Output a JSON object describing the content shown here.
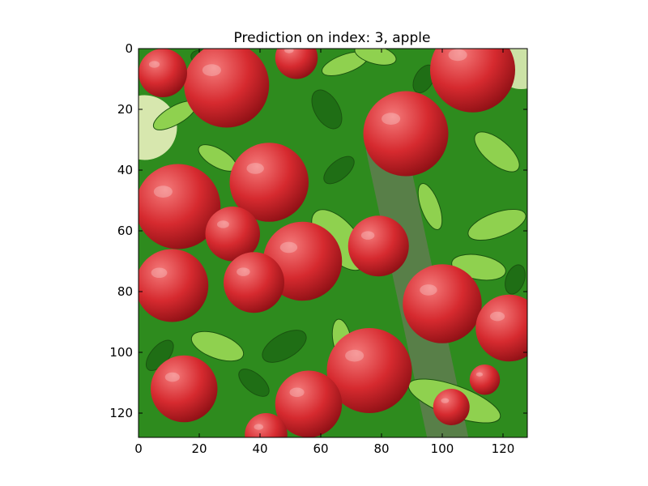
{
  "chart_data": {
    "type": "image",
    "title": "Prediction on index: 3, apple",
    "xlabel": "",
    "ylabel": "",
    "xlim": [
      0,
      128
    ],
    "ylim": [
      128,
      0
    ],
    "x_ticks": [
      0,
      20,
      40,
      60,
      80,
      100,
      120
    ],
    "y_ticks": [
      0,
      20,
      40,
      60,
      80,
      100,
      120
    ],
    "x_tick_labels": [
      "0",
      "20",
      "40",
      "60",
      "80",
      "100",
      "120"
    ],
    "y_tick_labels": [
      "0",
      "20",
      "40",
      "60",
      "80",
      "100",
      "120"
    ],
    "grid": false,
    "image_content": "apples-on-tree",
    "colors": {
      "apple": "#d62a2f",
      "apple_highlight": "#f06a6a",
      "leaf": "#2e8b1e",
      "leaf_light": "#8fd14f",
      "bark": "#6b7a5a",
      "bright": "#f4f7c8"
    },
    "apples": [
      {
        "x": 29,
        "y": 12,
        "r": 14
      },
      {
        "x": 52,
        "y": 3,
        "r": 7
      },
      {
        "x": 110,
        "y": 7,
        "r": 14
      },
      {
        "x": 8,
        "y": 8,
        "r": 8
      },
      {
        "x": 88,
        "y": 28,
        "r": 14
      },
      {
        "x": 43,
        "y": 44,
        "r": 13
      },
      {
        "x": 13,
        "y": 52,
        "r": 14
      },
      {
        "x": 31,
        "y": 61,
        "r": 9
      },
      {
        "x": 54,
        "y": 70,
        "r": 13
      },
      {
        "x": 79,
        "y": 65,
        "r": 10
      },
      {
        "x": 38,
        "y": 77,
        "r": 10
      },
      {
        "x": 11,
        "y": 78,
        "r": 12
      },
      {
        "x": 100,
        "y": 84,
        "r": 13
      },
      {
        "x": 122,
        "y": 92,
        "r": 11
      },
      {
        "x": 76,
        "y": 106,
        "r": 14
      },
      {
        "x": 15,
        "y": 112,
        "r": 11
      },
      {
        "x": 56,
        "y": 117,
        "r": 11
      },
      {
        "x": 42,
        "y": 127,
        "r": 7
      },
      {
        "x": 103,
        "y": 118,
        "r": 6
      },
      {
        "x": 114,
        "y": 109,
        "r": 5
      }
    ],
    "leaves": [
      {
        "x": 12,
        "y": 22,
        "rx": 8,
        "ry": 3,
        "rot": -30,
        "light": true
      },
      {
        "x": 23,
        "y": 4,
        "rx": 6,
        "ry": 3,
        "rot": 20,
        "light": false
      },
      {
        "x": 68,
        "y": 5,
        "rx": 8,
        "ry": 3,
        "rot": -20,
        "light": true
      },
      {
        "x": 78,
        "y": 2,
        "rx": 7,
        "ry": 3,
        "rot": 15,
        "light": true
      },
      {
        "x": 62,
        "y": 20,
        "rx": 7,
        "ry": 4,
        "rot": 60,
        "light": false
      },
      {
        "x": 94,
        "y": 10,
        "rx": 5,
        "ry": 3,
        "rot": -60,
        "light": false
      },
      {
        "x": 118,
        "y": 34,
        "rx": 9,
        "ry": 4,
        "rot": 40,
        "light": true
      },
      {
        "x": 66,
        "y": 40,
        "rx": 6,
        "ry": 3,
        "rot": -40,
        "light": false
      },
      {
        "x": 26,
        "y": 36,
        "rx": 7,
        "ry": 3,
        "rot": 30,
        "light": true
      },
      {
        "x": 66,
        "y": 63,
        "rx": 12,
        "ry": 6,
        "rot": 50,
        "light": true
      },
      {
        "x": 96,
        "y": 52,
        "rx": 8,
        "ry": 3,
        "rot": 70,
        "light": true
      },
      {
        "x": 118,
        "y": 58,
        "rx": 10,
        "ry": 4,
        "rot": -20,
        "light": true
      },
      {
        "x": 112,
        "y": 72,
        "rx": 9,
        "ry": 4,
        "rot": 10,
        "light": true
      },
      {
        "x": 26,
        "y": 98,
        "rx": 9,
        "ry": 4,
        "rot": 20,
        "light": true
      },
      {
        "x": 48,
        "y": 98,
        "rx": 8,
        "ry": 4,
        "rot": -30,
        "light": false
      },
      {
        "x": 67,
        "y": 96,
        "rx": 7,
        "ry": 3,
        "rot": 80,
        "light": true
      },
      {
        "x": 104,
        "y": 116,
        "rx": 16,
        "ry": 5,
        "rot": 20,
        "light": true
      },
      {
        "x": 7,
        "y": 101,
        "rx": 6,
        "ry": 3,
        "rot": -50,
        "light": false
      },
      {
        "x": 38,
        "y": 110,
        "rx": 6,
        "ry": 3,
        "rot": 40,
        "light": false
      },
      {
        "x": 124,
        "y": 76,
        "rx": 5,
        "ry": 3,
        "rot": -70,
        "light": false
      }
    ]
  }
}
